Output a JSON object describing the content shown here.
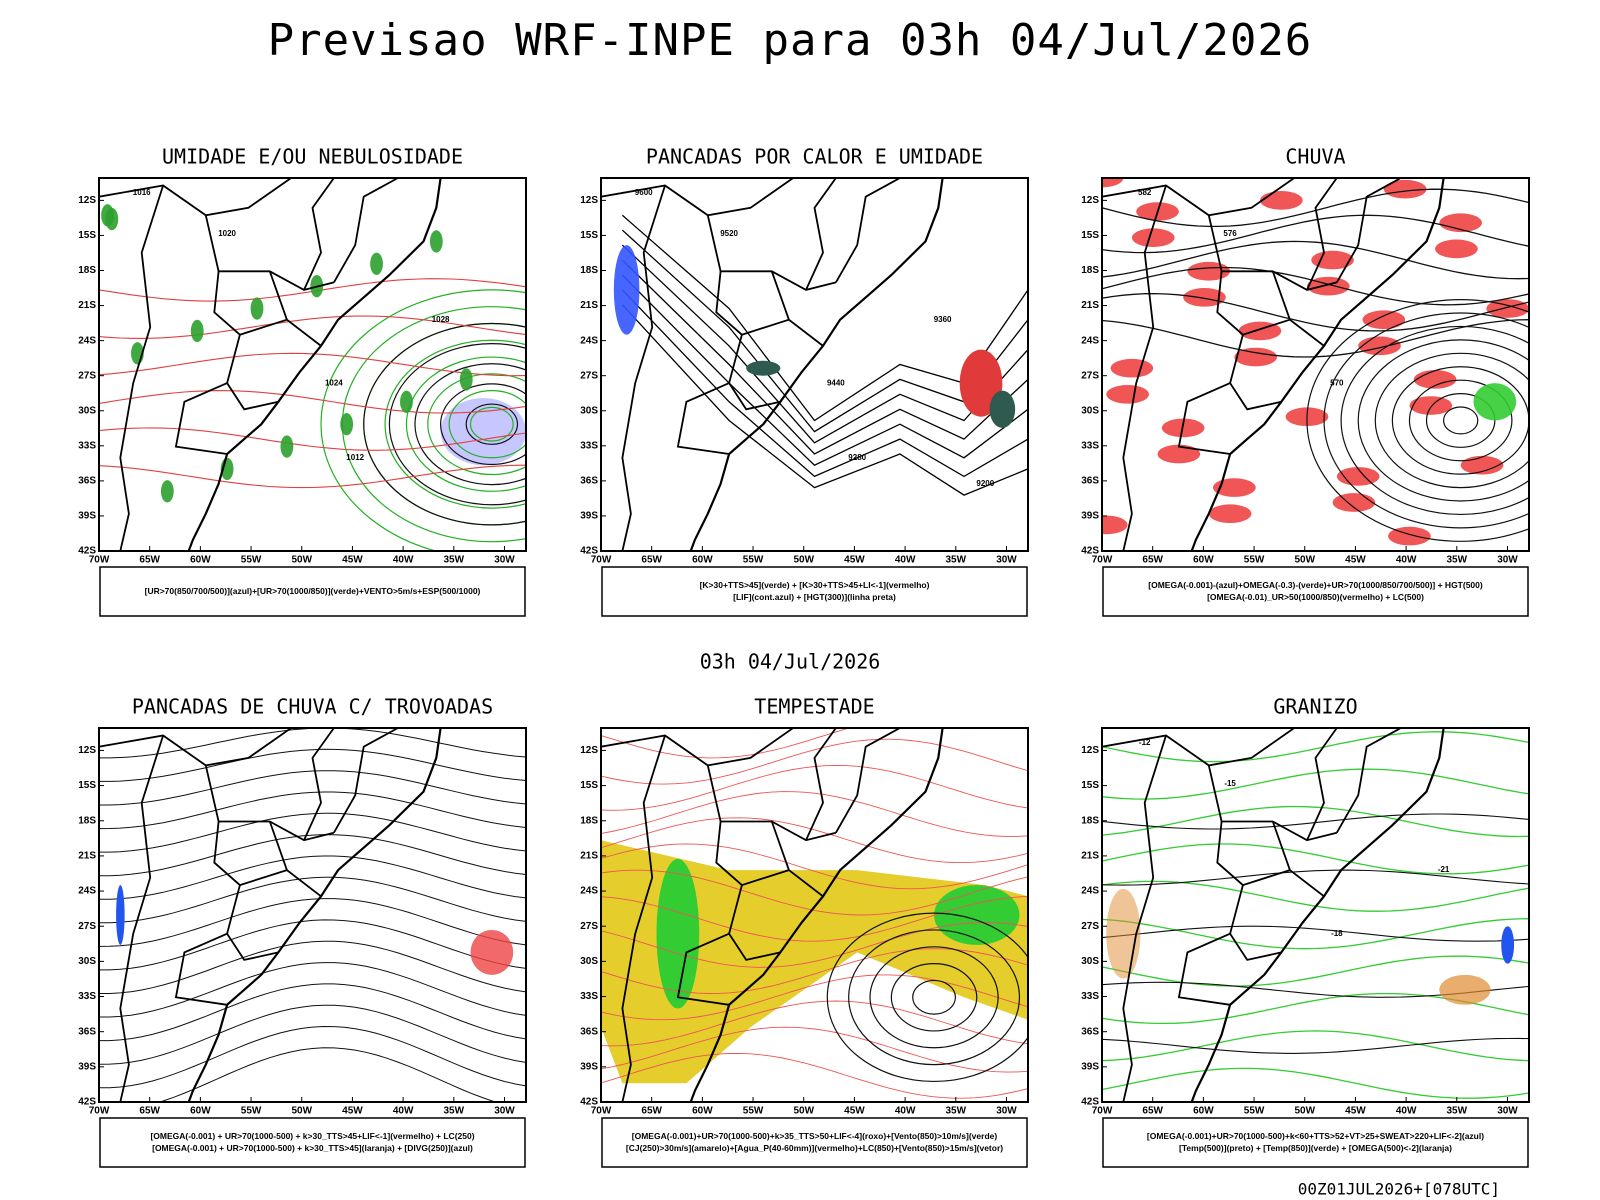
{
  "header": {
    "title": "Previsao WRF-INPE  para 03h 04/Jul/2026",
    "subtitle": "03h 04/Jul/2026"
  },
  "footer": "00Z01JUL2026+[078UTC]",
  "lat_labels": [
    "12S",
    "15S",
    "18S",
    "21S",
    "24S",
    "27S",
    "30S",
    "33S",
    "36S",
    "39S",
    "42S"
  ],
  "lon_labels": [
    "70W",
    "65W",
    "60W",
    "55W",
    "50W",
    "45W",
    "40W",
    "35W",
    "30W"
  ],
  "panels": [
    {
      "title": "UMIDADE E/OU NEBULOSIDADE",
      "legend": [
        "[UR>70(850/700/500)](azul)+[UR>70(1000/850)](verde)+VENTO>5m/s+ESP(500/1000)"
      ],
      "contour_labels": [
        "1016",
        "1020",
        "1024",
        "1028",
        "1012"
      ]
    },
    {
      "title": "PANCADAS POR CALOR E UMIDADE",
      "legend": [
        "[K>30+TTS>45](verde) + [K>30+TTS>45+LI<-1](vermelho)",
        "[LIF](cont.azul) + [HGT(300)](linha preta)"
      ],
      "contour_labels": [
        "9600",
        "9520",
        "9440",
        "9360",
        "9280",
        "9200"
      ]
    },
    {
      "title": "CHUVA",
      "legend": [
        "[OMEGA(-0.001)-(azul)+OMEGA(-0.3)-(verde)+UR>70(1000/850/700/500)] + HGT(500)",
        "[OMEGA(-0.01)_UR>50(1000/850)(vermelho) + LC(500)"
      ],
      "contour_labels": [
        "582",
        "576",
        "570"
      ]
    },
    {
      "title": "PANCADAS DE CHUVA C/ TROVOADAS",
      "legend": [
        "[OMEGA(-0.001) + UR>70(1000-500) + k>30_TTS>45+LIF<-1](vermelho) + LC(250)",
        "[OMEGA(-0.001) + UR>70(1000-500) + k>30_TTS>45](laranja) + [DIVG(250)](azul)"
      ],
      "contour_labels": []
    },
    {
      "title": "TEMPESTADE",
      "legend": [
        "[OMEGA(-0.001)+UR>70(1000-500)+k>35_TTS>50+LIF<-4](roxo)+[Vento(850)>10m/s](verde)",
        "[CJ(250)>30m/s](amarelo)+[Agua_P(40-60mm)](vermelho)+LC(850)+[Vento(850)>15m/s](vetor)"
      ],
      "contour_labels": []
    },
    {
      "title": "GRANIZO",
      "legend": [
        "[OMEGA(-0.001)+UR>70(1000-500)+k<60+TTS>52+VT>25+SWEAT>220+LIF<-2](azul)",
        "[Temp(500)](preto) + [Temp(850)](verde) + [OMEGA(500)<-2](laranja)"
      ],
      "contour_labels": [
        "-12",
        "-15",
        "-18",
        "-21"
      ]
    }
  ]
}
